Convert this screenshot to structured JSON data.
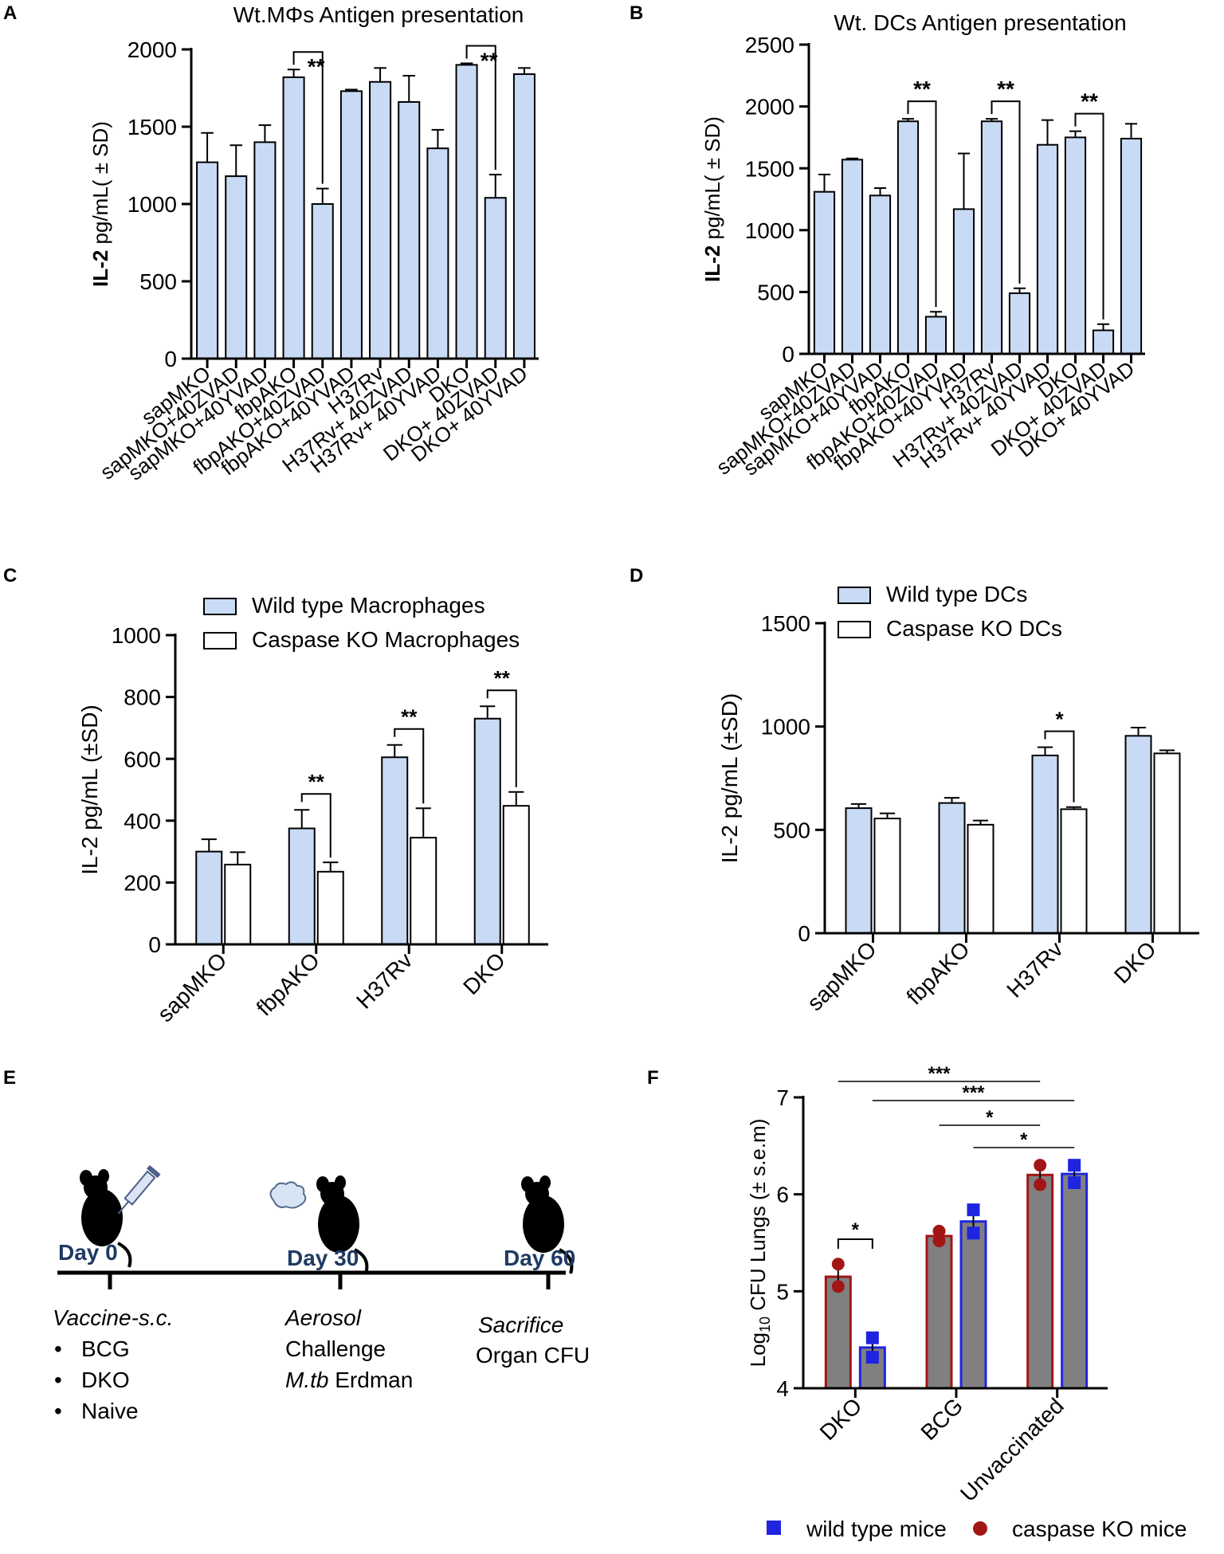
{
  "colors": {
    "wt_fill": "#c9daf5",
    "ko_fill": "#ffffff",
    "bar_stroke": "#000000",
    "f_bar_fill": "#808080",
    "f_red": "#a31515",
    "f_blue": "#1f24e0",
    "e_label": "#1f3a63"
  },
  "panels": {
    "A": "A",
    "B": "B",
    "C": "C",
    "D": "D",
    "E": "E",
    "F": "F"
  },
  "panel_e": {
    "days": [
      "Day 0",
      "Day 30",
      "Day 60"
    ],
    "vaccine_title": "Vaccine-s.c.",
    "vaccine_items": [
      "BCG",
      "DKO",
      "Naive"
    ],
    "aerosol": "Aerosol",
    "challenge": "Challenge",
    "strain_italic": "M.tb",
    "strain_rest": " Erdman",
    "sacrifice": "Sacrifice",
    "organ_cfu": "Organ CFU"
  },
  "chart_data": [
    {
      "id": "A",
      "type": "bar",
      "title": "Wt.MΦs Antigen presentation",
      "ylabel_bold": "IL-2",
      "ylabel_rest": " pg/mL( ± SD)",
      "ylim": [
        0,
        2000
      ],
      "yticks": [
        0,
        500,
        1000,
        1500,
        2000
      ],
      "categories": [
        "sapMKO",
        "sapMKO+40ZVAD",
        "sapMKO+40YVAD",
        "fbpAKO",
        "fbpAKO+40ZVAD",
        "fbpAKO+40YVAD",
        "H37Rv",
        "H37Rv+ 40ZVAD",
        "H37Rv+ 40YVAD",
        "DKO",
        "DKO+ 40ZVAD",
        "DKO+ 40YVAD"
      ],
      "values": [
        1270,
        1180,
        1400,
        1820,
        1000,
        1730,
        1790,
        1660,
        1360,
        1900,
        1040,
        1840
      ],
      "errors": [
        190,
        200,
        110,
        50,
        100,
        10,
        90,
        170,
        120,
        10,
        150,
        40
      ],
      "significance": [
        {
          "from": 3,
          "to": 4,
          "label": "**"
        },
        {
          "from": 9,
          "to": 10,
          "label": "**"
        }
      ]
    },
    {
      "id": "B",
      "type": "bar",
      "title": "Wt. DCs Antigen presentation",
      "ylabel_bold": "IL-2",
      "ylabel_rest": " pg/mL( ± SD)",
      "ylim": [
        0,
        2500
      ],
      "yticks": [
        0,
        500,
        1000,
        1500,
        2000,
        2500
      ],
      "categories": [
        "sapMKO",
        "sapMKO+40ZVAD",
        "sapMKO+40YVAD",
        "fbpAKO",
        "fbpAKO+40ZVAD",
        "fbpAKO+40YVAD",
        "H37Rv",
        "H37Rv+ 40ZVAD",
        "H37Rv+ 40YVAD",
        "DKO",
        "DKO+ 40ZVAD",
        "DKO+ 40YVAD"
      ],
      "values": [
        1310,
        1570,
        1280,
        1880,
        300,
        1170,
        1880,
        490,
        1690,
        1750,
        190,
        1740
      ],
      "errors": [
        140,
        10,
        60,
        20,
        40,
        450,
        20,
        40,
        200,
        50,
        50,
        120
      ],
      "significance": [
        {
          "from": 3,
          "to": 4,
          "label": "**"
        },
        {
          "from": 6,
          "to": 7,
          "label": "**"
        },
        {
          "from": 9,
          "to": 10,
          "label": "**"
        }
      ]
    },
    {
      "id": "C",
      "type": "bar",
      "ylabel": "IL-2 pg/mL (±SD)",
      "ylim": [
        0,
        1000
      ],
      "yticks": [
        0,
        200,
        400,
        600,
        800,
        1000
      ],
      "categories": [
        "sapMKO",
        "fbpAKO",
        "H37Rv",
        "DKO"
      ],
      "series": [
        {
          "name": "Wild type Macrophages",
          "values": [
            300,
            375,
            605,
            730
          ],
          "errors": [
            40,
            60,
            40,
            40
          ]
        },
        {
          "name": "Caspase KO Macrophages",
          "values": [
            258,
            235,
            345,
            448
          ],
          "errors": [
            40,
            30,
            95,
            45
          ]
        }
      ],
      "significance": [
        {
          "group": 1,
          "label": "**"
        },
        {
          "group": 2,
          "label": "**"
        },
        {
          "group": 3,
          "label": "**"
        }
      ]
    },
    {
      "id": "D",
      "type": "bar",
      "ylabel": "IL-2 pg/mL (±SD)",
      "ylim": [
        0,
        1500
      ],
      "yticks": [
        0,
        500,
        1000,
        1500
      ],
      "categories": [
        "sapMKO",
        "fbpAKO",
        "H37Rv",
        "DKO"
      ],
      "series": [
        {
          "name": "Wild type DCs",
          "values": [
            605,
            630,
            860,
            955
          ],
          "errors": [
            20,
            25,
            40,
            40
          ]
        },
        {
          "name": "Caspase KO DCs",
          "values": [
            555,
            525,
            600,
            870
          ],
          "errors": [
            25,
            20,
            10,
            15
          ]
        }
      ],
      "significance": [
        {
          "group": 2,
          "label": "*"
        }
      ]
    },
    {
      "id": "F",
      "type": "bar",
      "ylabel_log": "Log",
      "ylabel_sub": "10",
      "ylabel_rest": " CFU Lungs (± s.e.m)",
      "ylim": [
        4,
        7
      ],
      "yticks": [
        4,
        5,
        6,
        7
      ],
      "categories": [
        "DKO",
        "BCG",
        "Unvaccinated"
      ],
      "series": [
        {
          "name": "caspase KO  mice",
          "values": [
            5.15,
            5.57,
            6.2
          ],
          "errors": [
            0.14,
            0.05,
            0.1
          ],
          "points": [
            [
              5.05,
              5.28
            ],
            [
              5.52,
              5.62
            ],
            [
              6.1,
              6.3
            ]
          ]
        },
        {
          "name": "wild type mice",
          "values": [
            4.42,
            5.72,
            6.21
          ],
          "errors": [
            0.1,
            0.12,
            0.09
          ],
          "points": [
            [
              4.32,
              4.52
            ],
            [
              5.6,
              5.84
            ],
            [
              6.12,
              6.3
            ]
          ]
        }
      ],
      "legend_order": [
        1,
        0
      ],
      "significance_within": [
        {
          "group": 0,
          "label": "*"
        }
      ],
      "significance_lines": [
        {
          "label": "***"
        },
        {
          "label": "***"
        },
        {
          "label": "*"
        },
        {
          "label": "*"
        }
      ]
    }
  ]
}
